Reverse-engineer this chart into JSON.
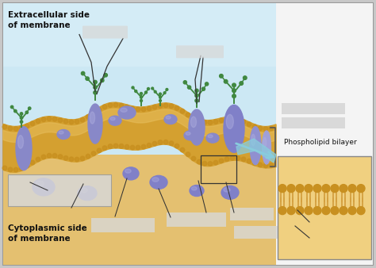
{
  "bg_color": "#c8c8c8",
  "outer_border_color": "#999999",
  "extracellular_bg_top": "#cce8f2",
  "extracellular_bg_bot": "#e8f4f8",
  "cytoplasm_bg": "#e8c878",
  "membrane_fill": "#d4a030",
  "membrane_dot_color": "#c89020",
  "protein_main": "#8080c8",
  "protein_light": "#a0a0d8",
  "carb_color": "#408840",
  "inset_bg": "#e8c870",
  "inset_border": "#888888",
  "label_box_color": "#d8d8d8",
  "label_box_edge": "#bbbbbb",
  "arrow_color": "#88ccdd",
  "bracket_color": "#555555",
  "line_color": "#333333",
  "text_color": "#111111",
  "text_extracellular": "Extracellular side\nof membrane",
  "text_cytoplasmic": "Cytoplasmic side\nof membrane",
  "text_phospholipid": "Phospholipid bilayer",
  "white_panel_right": "#f4f4f4",
  "figsize": [
    4.74,
    3.38
  ],
  "dpi": 100
}
